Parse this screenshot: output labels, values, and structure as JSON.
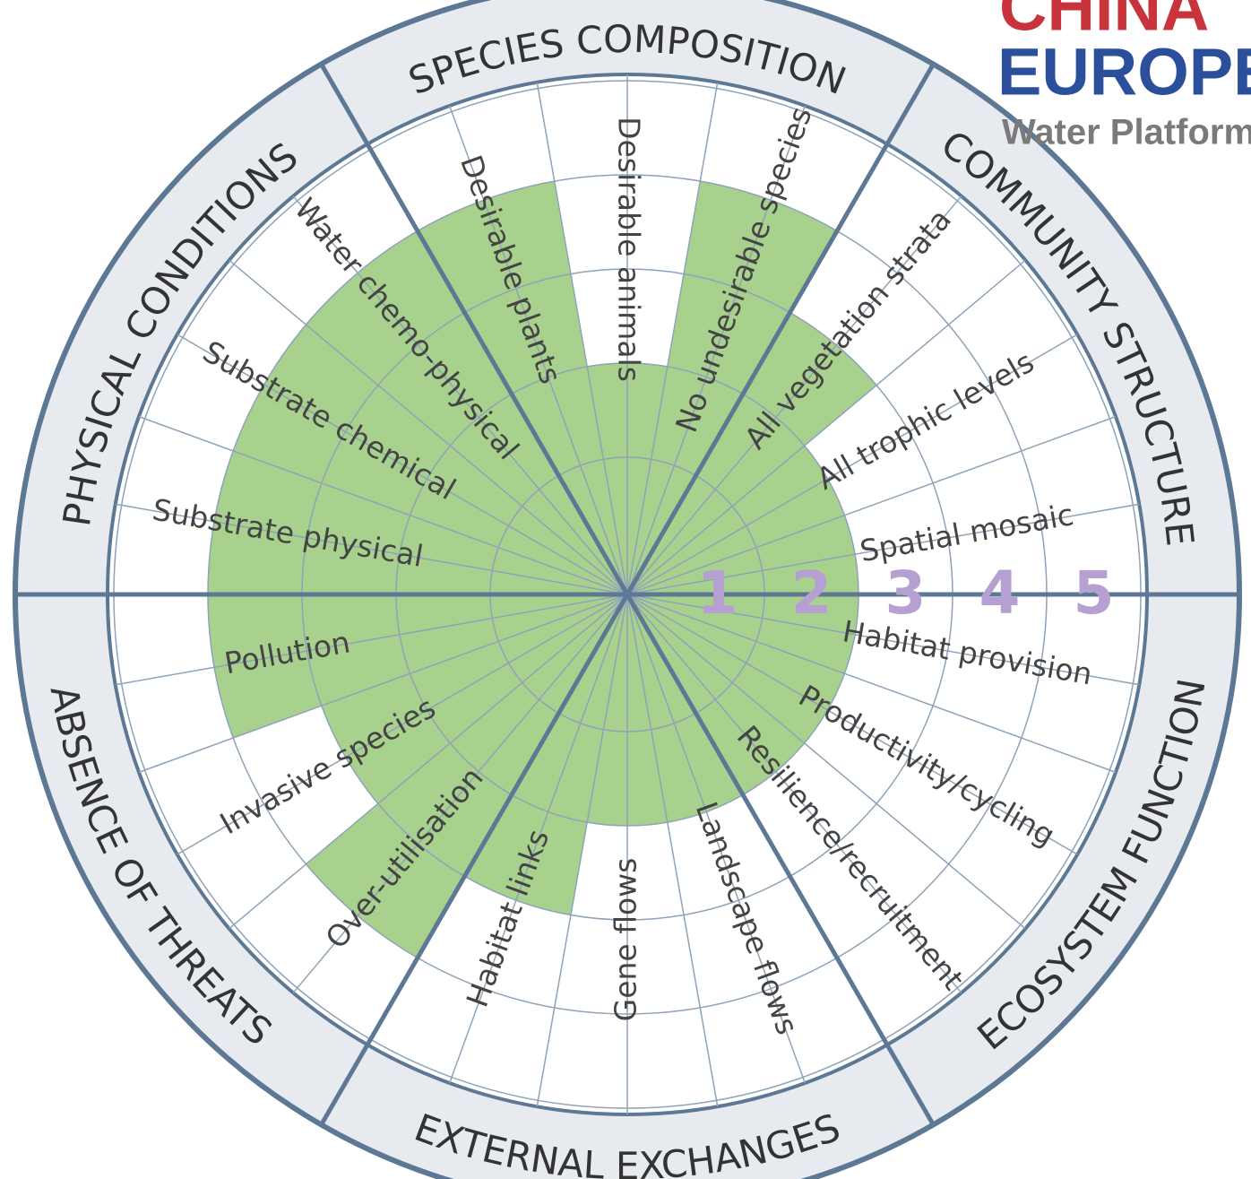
{
  "chart_data": {
    "type": "recovery_wheel",
    "color": "#a9d18e",
    "rlim": [
      0,
      5
    ],
    "rticks": [
      1,
      2,
      3,
      4,
      5
    ],
    "groups": [
      {
        "name": "SPECIES COMPOSITION",
        "categories": [
          "Desirable plants",
          "Desirable animals",
          "No undesirable species"
        ],
        "values": [
          4,
          2,
          4
        ]
      },
      {
        "name": "COMMUNITY STRUCTURE",
        "categories": [
          "All vegetation strata",
          "All trophic levels",
          "Spatial mosaic"
        ],
        "values": [
          3,
          2,
          2
        ]
      },
      {
        "name": "ECOSYSTEM FUNCTION",
        "categories": [
          "Habitat provision",
          "Productivity/cycling",
          "Resilience/recruitment"
        ],
        "values": [
          2,
          2,
          2
        ]
      },
      {
        "name": "EXTERNAL EXCHANGES",
        "categories": [
          "Landscape flows",
          "Gene flows",
          "Habitat links"
        ],
        "values": [
          2,
          2,
          3
        ]
      },
      {
        "name": "ABSENCE OF THREATS",
        "categories": [
          "Over-utilisation",
          "Invasive species",
          "Pollution"
        ],
        "values": [
          4,
          3,
          4
        ]
      },
      {
        "name": "PHYSICAL CONDITIONS",
        "categories": [
          "Substrate physical",
          "Substrate chemical",
          "Water chemo-physical"
        ],
        "values": [
          4,
          4,
          4
        ]
      }
    ]
  },
  "logo": {
    "lines": [
      "CHINA",
      "EUROPE",
      "Water Platform"
    ]
  }
}
